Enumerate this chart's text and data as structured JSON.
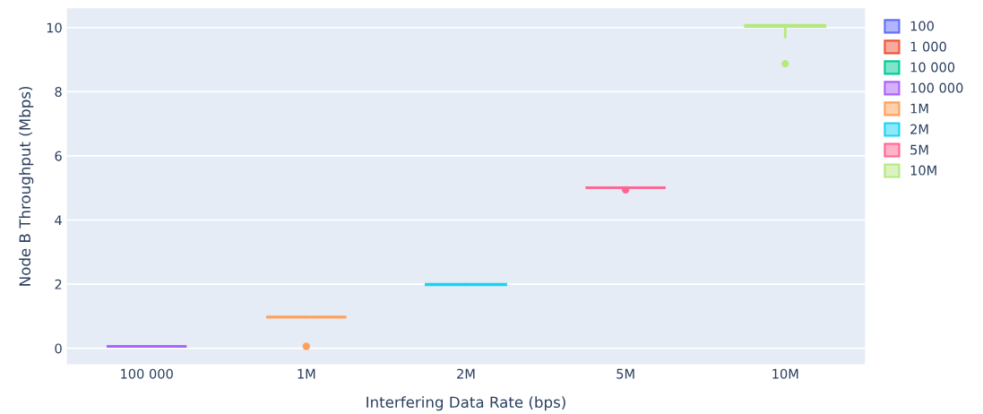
{
  "chart_data": {
    "type": "box",
    "xlabel": "Interfering Data Rate (bps)",
    "ylabel": "Node B Throughput (Mbps)",
    "categories": [
      "100 000",
      "1M",
      "2M",
      "5M",
      "10M"
    ],
    "ylim": [
      -0.5,
      10.6
    ],
    "yticks": [
      0,
      2,
      4,
      6,
      8,
      10
    ],
    "grid": "y",
    "legend": "right",
    "series": [
      {
        "name": "100",
        "color": "#636efa",
        "boxes": [
          null,
          null,
          null,
          null,
          null
        ]
      },
      {
        "name": "1 000",
        "color": "#ef553b",
        "boxes": [
          null,
          null,
          null,
          null,
          null
        ]
      },
      {
        "name": "10 000",
        "color": "#00cc96",
        "boxes": [
          null,
          null,
          null,
          null,
          null
        ]
      },
      {
        "name": "100 000",
        "color": "#ab63fa",
        "boxes": [
          {
            "low": 0.06,
            "q1": 0.06,
            "median": 0.06,
            "q3": 0.06,
            "high": 0.06
          },
          null,
          null,
          null,
          null
        ]
      },
      {
        "name": "1M",
        "color": "#ffa15a",
        "boxes": [
          null,
          {
            "low": 0.97,
            "q1": 0.97,
            "median": 0.97,
            "q3": 0.97,
            "high": 0.97,
            "outliers": [
              0.06
            ]
          },
          null,
          null,
          null
        ]
      },
      {
        "name": "2M",
        "color": "#19d3f3",
        "boxes": [
          null,
          null,
          {
            "low": 1.98,
            "q1": 1.98,
            "median": 1.99,
            "q3": 2.0,
            "high": 2.0
          },
          null,
          null
        ]
      },
      {
        "name": "5M",
        "color": "#ff6692",
        "boxes": [
          null,
          null,
          null,
          {
            "low": 5.01,
            "q1": 5.01,
            "median": 5.01,
            "q3": 5.01,
            "high": 5.01,
            "outliers": [
              4.94
            ]
          },
          null
        ]
      },
      {
        "name": "10M",
        "color": "#b6e880",
        "boxes": [
          null,
          null,
          null,
          null,
          {
            "low": 9.7,
            "q1": 10.03,
            "median": 10.05,
            "q3": 10.07,
            "high": 10.08,
            "outliers": [
              8.87
            ]
          }
        ]
      }
    ]
  }
}
